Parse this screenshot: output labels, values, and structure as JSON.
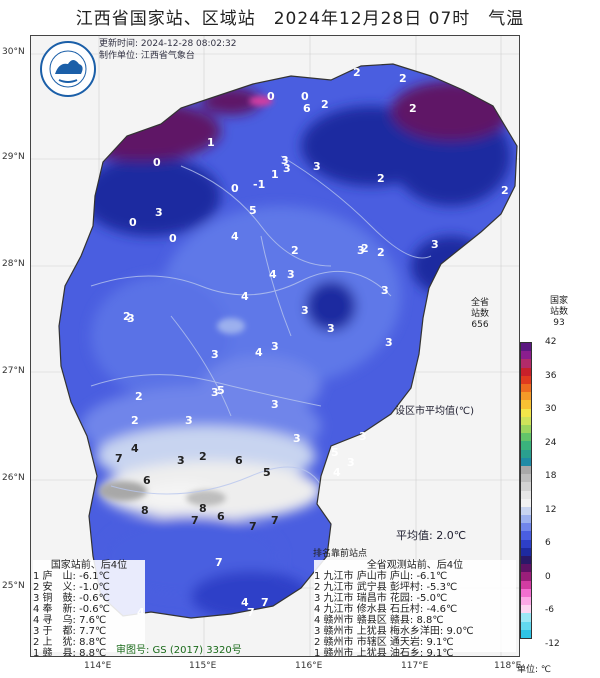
{
  "title": "江西省国家站、区域站　2024年12月28日 07时　气温",
  "agency": {
    "logo_text": "江西气象",
    "logo_text_en": "JIANGXI METEOROLOGY",
    "update_time": "更新时间: 2024-12-28 08:02:32",
    "maker": "制作单位: 江西省气象台"
  },
  "axes": {
    "lat": [
      "30°N",
      "29°N",
      "28°N",
      "27°N",
      "26°N",
      "25°N"
    ],
    "lon": [
      "114°E",
      "115°E",
      "116°E",
      "117°E",
      "118°E"
    ]
  },
  "stations_count": {
    "province_label_1": "全省",
    "province_label_2": "站数",
    "province_count": "656",
    "national_label_1": "国家",
    "national_label_2": "站数",
    "national_count": "93"
  },
  "colorbar": {
    "labels": [
      "42",
      "36",
      "30",
      "24",
      "18",
      "12",
      "6",
      "0",
      "-6",
      "-12"
    ],
    "unit": "单位: ℃",
    "colors": [
      "#5c1880",
      "#8a1e8e",
      "#b22b6a",
      "#c8202a",
      "#e03a1f",
      "#ee6b20",
      "#f59a28",
      "#f8c133",
      "#f3e64a",
      "#cfe35a",
      "#9bd55e",
      "#62c46a",
      "#3ab37c",
      "#2a9f8f",
      "#1f8ba6",
      "#a8a8a8",
      "#bdbdbd",
      "#d2d2d2",
      "#e6e6e6",
      "#f2f2f2",
      "#c8d4f0",
      "#9cb0ee",
      "#7085ea",
      "#4a5ee0",
      "#2d3fc8",
      "#1e2aa0",
      "#2a1868",
      "#5e1266",
      "#9a1e7a",
      "#d23ca2",
      "#f26fd0",
      "#fca8e6",
      "#fdd6f2",
      "#9be7f5",
      "#62d8ef",
      "#2ec4e6"
    ]
  },
  "region_avg": {
    "label": "设区市平均值(℃)",
    "value": "平均值: 2.0℃"
  },
  "rank_title": "排名靠前站点",
  "national_panel": {
    "header": "国家站前、后4位",
    "rows": [
      {
        "rank": "1",
        "name": "庐　山:",
        "value": "-6.1℃"
      },
      {
        "rank": "2",
        "name": "安　义:",
        "value": "-1.0℃"
      },
      {
        "rank": "3",
        "name": "铜　鼓:",
        "value": "-0.6℃"
      },
      {
        "rank": "4",
        "name": "奉　新:",
        "value": "-0.6℃"
      },
      {
        "rank": "4",
        "name": "寻　乌:",
        "value": "7.6℃"
      },
      {
        "rank": "3",
        "name": "于　都:",
        "value": "7.7℃"
      },
      {
        "rank": "2",
        "name": "上　犹:",
        "value": "8.8℃"
      },
      {
        "rank": "1",
        "name": "赣　县:",
        "value": "8.8℃"
      }
    ]
  },
  "obs_panel": {
    "header": "全省观测站前、后4位",
    "rows": [
      {
        "rank": "1",
        "city": "九江市",
        "county": "庐山市",
        "site": "庐山:",
        "value": "-6.1℃"
      },
      {
        "rank": "2",
        "city": "九江市",
        "county": "武宁县",
        "site": "彭坪村:",
        "value": "-5.3℃"
      },
      {
        "rank": "3",
        "city": "九江市",
        "county": "瑞昌市",
        "site": "花园:",
        "value": "-5.0℃"
      },
      {
        "rank": "4",
        "city": "九江市",
        "county": "修水县",
        "site": "石丘村:",
        "value": "-4.6℃"
      },
      {
        "rank": "4",
        "city": "赣州市",
        "county": "赣县区",
        "site": "赣县:",
        "value": "8.8℃"
      },
      {
        "rank": "3",
        "city": "赣州市",
        "county": "上犹县",
        "site": "梅水乡洋田:",
        "value": "9.0℃"
      },
      {
        "rank": "2",
        "city": "赣州市",
        "county": "市辖区",
        "site": "通天岩:",
        "value": "9.1℃"
      },
      {
        "rank": "1",
        "city": "赣州市",
        "county": "上犹县",
        "site": "油石乡:",
        "value": "9.1℃"
      }
    ]
  },
  "approval": "审图号: GS (2017) 3320号",
  "map_values": [
    "0",
    "0",
    "6",
    "2",
    "2",
    "2",
    "2",
    "0",
    "1",
    "3",
    "1",
    "0",
    "3",
    "5",
    "3",
    "3",
    "2",
    "0",
    "-1",
    "2",
    "0",
    "4",
    "2",
    "2",
    "4",
    "2",
    "3",
    "3",
    "3",
    "3",
    "2",
    "3",
    "3",
    "3",
    "3",
    "3",
    "3",
    "4",
    "3",
    "2",
    "5",
    "2",
    "3",
    "3",
    "2",
    "4",
    "3",
    "3",
    "5",
    "4",
    "3",
    "6",
    "3",
    "5",
    "4",
    "6",
    "7",
    "6",
    "7",
    "8",
    "8",
    "7",
    "7",
    "7",
    "7",
    "4",
    "4",
    "7"
  ]
}
